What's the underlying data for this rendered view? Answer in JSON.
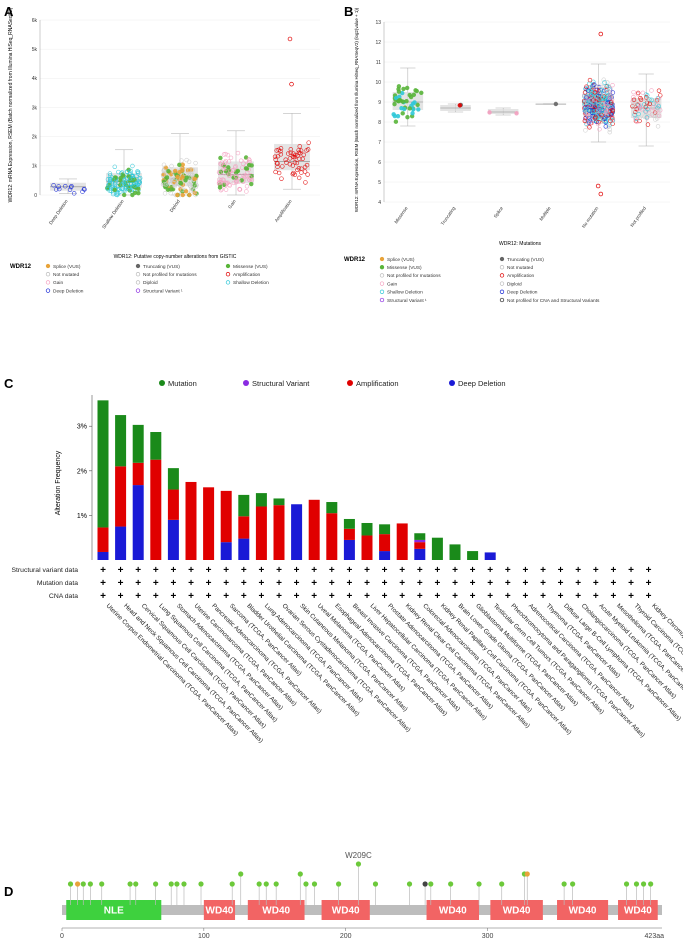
{
  "panels": {
    "a": "A",
    "b": "B",
    "c": "C",
    "d": "D"
  },
  "gene": "WDR12",
  "colors": {
    "mutation": "#1a8a1a",
    "sv": "#8a2be2",
    "amp": "#e00000",
    "del": "#1a1ad6",
    "missense": "#59b53a",
    "truncating": "#666666",
    "splice": "#e8a33a",
    "gain": "#f4a0c0",
    "shallow": "#30c8d8",
    "deep": "#1a2ad6",
    "notmut": "#cccccc",
    "box": "#d8d8d8",
    "backbone": "#bdbdbd",
    "nle": "#3ed13e",
    "wd40": "#f26464"
  },
  "chart_data": [
    {
      "type": "scatter",
      "panel": "A",
      "ylabel": "WDR12: mRNA Expression, RSEM (Batch normalized from Illumina HiSeq_RNASeqV2)",
      "xlabel": "WDR12: Putative copy-number alterations from GISTIC",
      "ylim": [
        0,
        6
      ],
      "ytick_labels": [
        "0",
        "1k",
        "2k",
        "3k",
        "4k",
        "5k",
        "6k"
      ],
      "categories": [
        "Deep Deletion",
        "Shallow Deletion",
        "Diploid",
        "Gain",
        "Amplification"
      ],
      "box": [
        {
          "q1": 0.15,
          "med": 0.28,
          "q3": 0.42,
          "lo": 0.05,
          "hi": 0.55,
          "n": 12
        },
        {
          "q1": 0.25,
          "med": 0.45,
          "q3": 0.75,
          "lo": 0.0,
          "hi": 1.55,
          "n": 140
        },
        {
          "q1": 0.3,
          "med": 0.55,
          "q3": 0.95,
          "lo": 0.0,
          "hi": 2.1,
          "n": 150
        },
        {
          "q1": 0.4,
          "med": 0.7,
          "q3": 1.15,
          "lo": 0.0,
          "hi": 2.2,
          "n": 110
        },
        {
          "q1": 0.85,
          "med": 1.15,
          "q3": 1.75,
          "lo": 0.2,
          "hi": 2.8,
          "n": 55
        }
      ],
      "outliers": [
        {
          "category": "Amplification",
          "value": 3.8
        },
        {
          "category": "Amplification",
          "value": 5.35
        }
      ],
      "legend": {
        "title": "WDR12",
        "items": [
          "Splice (VUS)",
          "Truncating (VUS)",
          "Missense (VUS)",
          "Not mutated",
          "Not profiled for mutations",
          "Amplification",
          "Gain",
          "Diploid",
          "Shallow Deletion",
          "Deep Deletion",
          "Structural Variant ¹"
        ]
      }
    },
    {
      "type": "scatter",
      "panel": "B",
      "ylabel": "WDR12: mRNA Expression, RSEM (Batch normalized from Illumina HiSeq_RNASeqV2) (log2(value + 1))",
      "xlabel": "WDR12: Mutations",
      "ylim": [
        4,
        13
      ],
      "ytick_labels": [
        "4",
        "5",
        "6",
        "7",
        "8",
        "9",
        "10",
        "11",
        "12",
        "13"
      ],
      "categories": [
        "Missense",
        "Truncating",
        "Splice",
        "Multiple",
        "No mutation",
        "Not profiled"
      ],
      "box": [
        {
          "q1": 8.6,
          "med": 9.0,
          "q3": 9.5,
          "lo": 7.8,
          "hi": 10.7,
          "n": 45
        },
        {
          "q1": 8.55,
          "med": 8.7,
          "q3": 8.85,
          "lo": 8.5,
          "hi": 8.9,
          "n": 2
        },
        {
          "q1": 8.4,
          "med": 8.5,
          "q3": 8.65,
          "lo": 8.35,
          "hi": 8.7,
          "n": 2
        },
        {
          "q1": 8.9,
          "med": 8.9,
          "q3": 8.9,
          "lo": 8.9,
          "hi": 8.9,
          "n": 1
        },
        {
          "q1": 8.3,
          "med": 8.85,
          "q3": 9.4,
          "lo": 7.0,
          "hi": 10.9,
          "n": 520
        },
        {
          "q1": 8.2,
          "med": 8.7,
          "q3": 9.2,
          "lo": 6.8,
          "hi": 10.4,
          "n": 80
        }
      ],
      "outliers": [
        {
          "category": "No mutation",
          "value": 4.4
        },
        {
          "category": "No mutation",
          "value": 12.4
        },
        {
          "category": "No mutation",
          "value": 4.8
        }
      ],
      "legend": {
        "title": "WDR12",
        "items": [
          "Splice (VUS)",
          "Truncating (VUS)",
          "Missense (VUS)",
          "Not mutated",
          "Not profiled for mutations",
          "Amplification",
          "Gain",
          "Diploid",
          "Shallow Deletion",
          "Deep Deletion",
          "Structural Variant ¹",
          "Not profiled for CNA and Structural Variants"
        ]
      }
    },
    {
      "type": "bar",
      "panel": "C",
      "ylabel": "Alteration Frequency",
      "ylim": [
        0,
        3.7
      ],
      "ytick_labels": [
        "1%",
        "2%",
        "3%"
      ],
      "yticks": [
        1,
        2,
        3
      ],
      "legend": [
        "Mutation",
        "Structural Variant",
        "Amplification",
        "Deep Deletion"
      ],
      "row_labels": [
        "Structural variant data",
        "Mutation data",
        "CNA data"
      ],
      "categories": [
        "Uterine Corpus Endometrial Carcinoma (TCGA, PanCancer Atlas)",
        "Head and Neck Squamous Cell Carcinoma (TCGA, PanCancer Atlas)",
        "Cervical Squamous Cell Carcinoma (TCGA, PanCancer Atlas)",
        "Lung Squamous Cell Carcinoma (TCGA, PanCancer Atlas)",
        "Stomach Adenocarcinoma (TCGA, PanCancer Atlas)",
        "Uterine Carcinosarcoma (TCGA, PanCancer Atlas)",
        "Pancreatic Adenocarcinoma (TCGA, PanCancer Atlas)",
        "Sarcoma (TCGA, PanCancer Atlas)",
        "Bladder Urothelial Carcinoma (TCGA, PanCancer Atlas)",
        "Lung Adenocarcinoma (TCGA, PanCancer Atlas)",
        "Ovarian Serous Cystadenocarcinoma (TCGA, PanCancer Atlas)",
        "Skin Cutaneous Melanoma (TCGA, PanCancer Atlas)",
        "Uveal Melanoma (TCGA, PanCancer Atlas)",
        "Esophageal Adenocarcinoma (TCGA, PanCancer Atlas)",
        "Breast Invasive Carcinoma (TCGA, PanCancer Atlas)",
        "Liver Hepatocellular Carcinoma (TCGA, PanCancer Atlas)",
        "Prostate Adenocarcinoma (TCGA, PanCancer Atlas)",
        "Kidney Renal Clear Cell Carcinoma (TCGA, PanCancer Atlas)",
        "Colorectal Adenocarcinoma (TCGA, PanCancer Atlas)",
        "Kidney Renal Papillary Cell Carcinoma (TCGA, PanCancer Atlas)",
        "Brain Lower Grade Glioma (TCGA, PanCancer Atlas)",
        "Glioblastoma Multiforme (TCGA, PanCancer Atlas)",
        "Testicular Germ Cell Tumors (TCGA, PanCancer Atlas)",
        "Pheochromocytoma and Paraganglioma (TCGA, PanCancer Atlas)",
        "Adrenocortical Carcinoma (TCGA, PanCancer Atlas)",
        "Thymoma (TCGA, PanCancer Atlas)",
        "Diffuse Large B-Cell Lymphoma (TCGA, PanCancer Atlas)",
        "Cholangiocarcinoma (TCGA, PanCancer Atlas)",
        "Acute Myeloid Leukemia (TCGA, PanCancer Atlas)",
        "Mesothelioma (TCGA, PanCancer Atlas)",
        "Thyroid Carcinoma (TCGA, PanCancer Atlas)",
        "Kidney Chromophobe (TCGA, PanCancer Atlas)"
      ],
      "series": [
        {
          "name": "Deep Deletion",
          "values": [
            0.18,
            0.75,
            1.68,
            0.0,
            0.9,
            0.0,
            0.0,
            0.4,
            0.48,
            0.0,
            0.0,
            1.25,
            0.0,
            0.0,
            0.45,
            0.0,
            0.2,
            0.0,
            0.25,
            0.0,
            0.0,
            0.0,
            0.17,
            0,
            0,
            0,
            0,
            0,
            0,
            0,
            0,
            0
          ]
        },
        {
          "name": "Amplification",
          "values": [
            0.55,
            1.35,
            0.5,
            2.25,
            0.68,
            1.75,
            1.63,
            1.15,
            0.5,
            1.2,
            1.23,
            0.0,
            1.35,
            1.05,
            0.25,
            0.55,
            0.38,
            0.82,
            0.15,
            0.0,
            0.0,
            0.0,
            0.0,
            0,
            0,
            0,
            0,
            0,
            0,
            0,
            0,
            0
          ]
        },
        {
          "name": "Structural Variant",
          "values": [
            0,
            0,
            0,
            0,
            0,
            0,
            0,
            0,
            0,
            0,
            0,
            0,
            0,
            0,
            0,
            0,
            0,
            0,
            0.05,
            0,
            0,
            0,
            0,
            0,
            0,
            0,
            0,
            0,
            0,
            0,
            0,
            0
          ]
        },
        {
          "name": "Mutation",
          "values": [
            2.85,
            1.15,
            0.85,
            0.62,
            0.48,
            0.0,
            0.0,
            0.0,
            0.48,
            0.3,
            0.15,
            0.0,
            0.0,
            0.25,
            0.22,
            0.28,
            0.22,
            0.0,
            0.15,
            0.5,
            0.35,
            0.2,
            0.0,
            0,
            0,
            0,
            0,
            0,
            0,
            0,
            0,
            0
          ]
        }
      ]
    },
    {
      "type": "lollipop",
      "panel": "D",
      "protein_length": 423,
      "length_label": "423aa",
      "x_ticks": [
        0,
        100,
        200,
        300
      ],
      "domains": [
        {
          "name": "NLE",
          "start": 3,
          "end": 70
        },
        {
          "name": "WD40",
          "start": 100,
          "end": 122
        },
        {
          "name": "WD40",
          "start": 131,
          "end": 171
        },
        {
          "name": "WD40",
          "start": 183,
          "end": 217
        },
        {
          "name": "WD40",
          "start": 257,
          "end": 294
        },
        {
          "name": "WD40",
          "start": 302,
          "end": 339
        },
        {
          "name": "WD40",
          "start": 349,
          "end": 385
        },
        {
          "name": "WD40",
          "start": 392,
          "end": 420
        }
      ],
      "hotspot_label": "W209C",
      "mutations": [
        {
          "pos": 6,
          "type": "missense",
          "count": 1
        },
        {
          "pos": 11,
          "type": "splice",
          "count": 1
        },
        {
          "pos": 15,
          "type": "missense",
          "count": 1
        },
        {
          "pos": 20,
          "type": "missense",
          "count": 1
        },
        {
          "pos": 28,
          "type": "missense",
          "count": 1
        },
        {
          "pos": 48,
          "type": "missense",
          "count": 1
        },
        {
          "pos": 52,
          "type": "missense",
          "count": 1
        },
        {
          "pos": 66,
          "type": "missense",
          "count": 1
        },
        {
          "pos": 77,
          "type": "missense",
          "count": 1
        },
        {
          "pos": 81,
          "type": "missense",
          "count": 1
        },
        {
          "pos": 86,
          "type": "missense",
          "count": 1
        },
        {
          "pos": 98,
          "type": "missense",
          "count": 1
        },
        {
          "pos": 120,
          "type": "missense",
          "count": 1
        },
        {
          "pos": 126,
          "type": "missense",
          "count": 2
        },
        {
          "pos": 139,
          "type": "missense",
          "count": 1
        },
        {
          "pos": 144,
          "type": "missense",
          "count": 1
        },
        {
          "pos": 151,
          "type": "missense",
          "count": 1
        },
        {
          "pos": 168,
          "type": "missense",
          "count": 2
        },
        {
          "pos": 172,
          "type": "missense",
          "count": 1
        },
        {
          "pos": 178,
          "type": "missense",
          "count": 1
        },
        {
          "pos": 195,
          "type": "missense",
          "count": 1
        },
        {
          "pos": 209,
          "type": "missense",
          "count": 3
        },
        {
          "pos": 221,
          "type": "missense",
          "count": 1
        },
        {
          "pos": 245,
          "type": "missense",
          "count": 1
        },
        {
          "pos": 256,
          "type": "truncating",
          "count": 1
        },
        {
          "pos": 260,
          "type": "missense",
          "count": 1
        },
        {
          "pos": 274,
          "type": "missense",
          "count": 1
        },
        {
          "pos": 294,
          "type": "missense",
          "count": 1
        },
        {
          "pos": 310,
          "type": "missense",
          "count": 1
        },
        {
          "pos": 326,
          "type": "missense",
          "count": 2
        },
        {
          "pos": 328,
          "type": "splice",
          "count": 2
        },
        {
          "pos": 354,
          "type": "missense",
          "count": 1
        },
        {
          "pos": 360,
          "type": "missense",
          "count": 1
        },
        {
          "pos": 398,
          "type": "missense",
          "count": 1
        },
        {
          "pos": 405,
          "type": "missense",
          "count": 1
        },
        {
          "pos": 410,
          "type": "missense",
          "count": 1
        },
        {
          "pos": 415,
          "type": "missense",
          "count": 1
        }
      ]
    }
  ]
}
